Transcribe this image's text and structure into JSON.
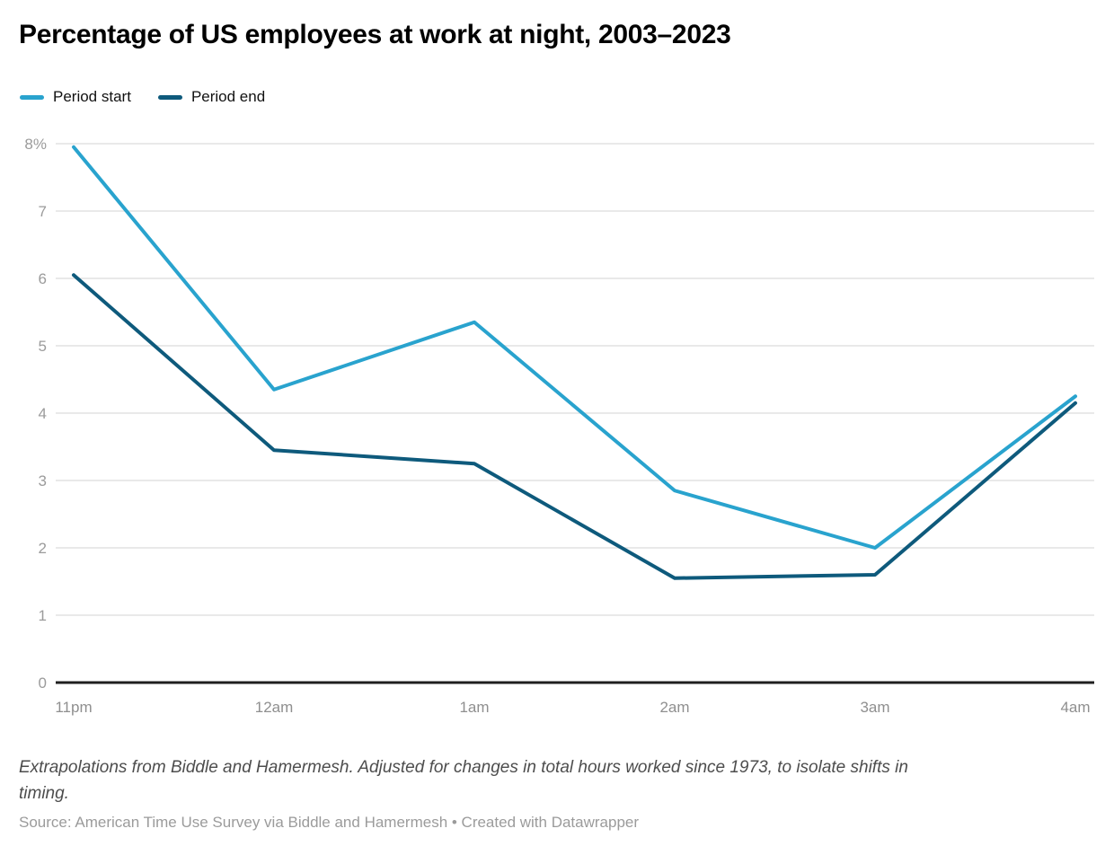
{
  "title": "Percentage of US employees at work at night, 2003–2023",
  "legend": {
    "items": [
      {
        "label": "Period start",
        "color": "#29a3ce"
      },
      {
        "label": "Period end",
        "color": "#0e5a7c"
      }
    ]
  },
  "footer": {
    "note": "Extrapolations from Biddle and Hamermesh. Adjusted for changes in total hours worked since 1973, to isolate shifts in timing.",
    "source": "Source: American Time Use Survey via Biddle and Hamermesh • Created with Datawrapper"
  },
  "colors": {
    "series_start": "#29a3ce",
    "series_end": "#0e5a7c",
    "gridline": "#e9e9e9",
    "axis_line": "#1f1f1f",
    "y_tick_text": "#9b9b9b",
    "x_tick_text": "#8f8f8f",
    "title_text": "#000000",
    "note_text": "#4d4d4d",
    "source_text": "#9b9b9b"
  },
  "chart_data": {
    "type": "line",
    "title": "Percentage of US employees at work at night, 2003–2023",
    "x": [
      "11pm",
      "12am",
      "1am",
      "2am",
      "3am",
      "4am"
    ],
    "series": [
      {
        "name": "Period start",
        "color": "#29a3ce",
        "values": [
          7.95,
          4.35,
          5.35,
          2.85,
          2.0,
          4.25
        ]
      },
      {
        "name": "Period end",
        "color": "#0e5a7c",
        "values": [
          6.05,
          3.45,
          3.25,
          1.55,
          1.6,
          4.15
        ]
      }
    ],
    "xlabel": "",
    "ylabel": "",
    "ylim": [
      0,
      8
    ],
    "yticks": [
      {
        "value": 8,
        "label": "8%"
      },
      {
        "value": 7,
        "label": "7"
      },
      {
        "value": 6,
        "label": "6"
      },
      {
        "value": 5,
        "label": "5"
      },
      {
        "value": 4,
        "label": "4"
      },
      {
        "value": 3,
        "label": "3"
      },
      {
        "value": 2,
        "label": "2"
      },
      {
        "value": 1,
        "label": "1"
      },
      {
        "value": 0,
        "label": "0"
      }
    ],
    "grid": "horizontal",
    "legend_position": "top-left"
  }
}
